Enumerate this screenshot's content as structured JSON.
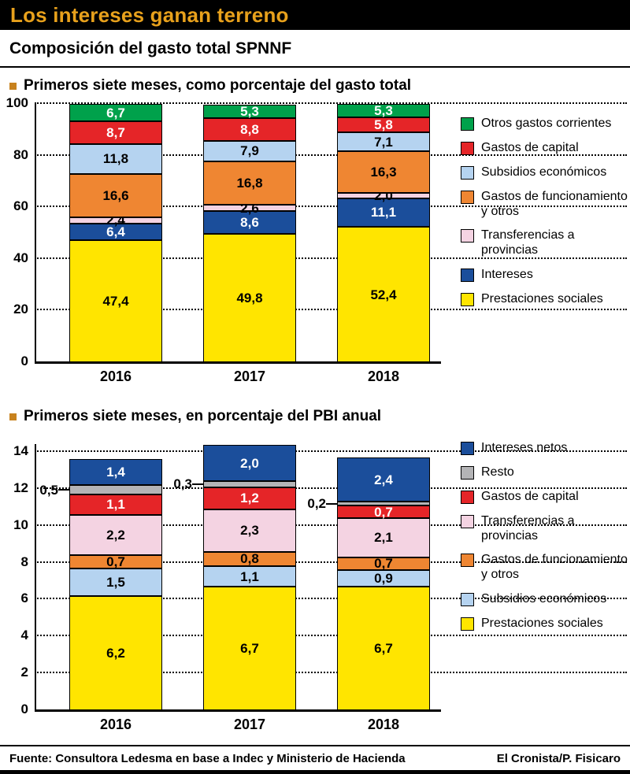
{
  "header": {
    "title": "Los intereses ganan terreno",
    "subtitle": "Composición del gasto total SPNNF"
  },
  "footer": {
    "source_label": "Fuente:",
    "source_text": "Consultora Ledesma en base a Indec y Ministerio de Hacienda",
    "credit": "El Cronista/P. Fisicaro"
  },
  "colors": {
    "header_bg": "#000000",
    "header_text": "#E8A11C",
    "bullet": "#C8821E",
    "yellow": "#FFE500",
    "dark_blue": "#1B4E9B",
    "pink": "#F4D3E2",
    "orange": "#EF8632",
    "light_blue": "#B5D3F0",
    "red": "#E52528",
    "green": "#00A14B",
    "gray": "#B4B4B6"
  },
  "chart_data": [
    {
      "type": "bar",
      "stacked": true,
      "title": "Primeros siete meses, como porcentaje del gasto total",
      "categories": [
        "2016",
        "2017",
        "2018"
      ],
      "ylim": [
        0,
        100
      ],
      "yticks": [
        0,
        20,
        40,
        60,
        80,
        100
      ],
      "grid": "dotted-horizontal",
      "legend_position": "right",
      "series": [
        {
          "name": "Prestaciones sociales",
          "color": "#FFE500",
          "text": "#000000",
          "values": [
            47.4,
            49.8,
            52.4
          ]
        },
        {
          "name": "Intereses",
          "color": "#1B4E9B",
          "text": "#FFFFFF",
          "values": [
            6.4,
            8.6,
            11.1
          ]
        },
        {
          "name": "Transferencias a provincias",
          "color": "#F4D3E2",
          "text": "#000000",
          "values": [
            2.4,
            2.6,
            2.0
          ]
        },
        {
          "name": "Gastos de funcionamiento y otros",
          "color": "#EF8632",
          "text": "#000000",
          "values": [
            16.6,
            16.8,
            16.3
          ]
        },
        {
          "name": "Subsidios económicos",
          "color": "#B5D3F0",
          "text": "#000000",
          "values": [
            11.8,
            7.9,
            7.1
          ]
        },
        {
          "name": "Gastos de capital",
          "color": "#E52528",
          "text": "#FFFFFF",
          "values": [
            8.7,
            8.8,
            5.8
          ]
        },
        {
          "name": "Otros gastos corrientes",
          "color": "#00A14B",
          "text": "#FFFFFF",
          "values": [
            6.7,
            5.3,
            5.3
          ]
        }
      ]
    },
    {
      "type": "bar",
      "stacked": true,
      "title": "Primeros siete meses, en porcentaje del PBI anual",
      "categories": [
        "2016",
        "2017",
        "2018"
      ],
      "ylim": [
        0,
        14
      ],
      "yticks": [
        0,
        2,
        4,
        6,
        8,
        10,
        12,
        14
      ],
      "grid": "dotted-horizontal",
      "legend_position": "right",
      "series": [
        {
          "name": "Prestaciones sociales",
          "color": "#FFE500",
          "text": "#000000",
          "values": [
            6.2,
            6.7,
            6.7
          ]
        },
        {
          "name": "Subsidios económicos",
          "color": "#B5D3F0",
          "text": "#000000",
          "values": [
            1.5,
            1.1,
            0.9
          ]
        },
        {
          "name": "Gastos de funcionamiento y otros",
          "color": "#EF8632",
          "text": "#000000",
          "values": [
            0.7,
            0.8,
            0.7
          ]
        },
        {
          "name": "Transferencias a provincias",
          "color": "#F4D3E2",
          "text": "#000000",
          "values": [
            2.2,
            2.3,
            2.1
          ]
        },
        {
          "name": "Gastos de capital",
          "color": "#E52528",
          "text": "#FFFFFF",
          "values": [
            1.1,
            1.2,
            0.7
          ]
        },
        {
          "name": "Resto",
          "color": "#B4B4B6",
          "text": "#000000",
          "values": [
            0.5,
            0.3,
            0.2
          ],
          "label_outside": true
        },
        {
          "name": "Intereses netos",
          "color": "#1B4E9B",
          "text": "#FFFFFF",
          "values": [
            1.4,
            2.0,
            2.4
          ]
        }
      ]
    }
  ]
}
